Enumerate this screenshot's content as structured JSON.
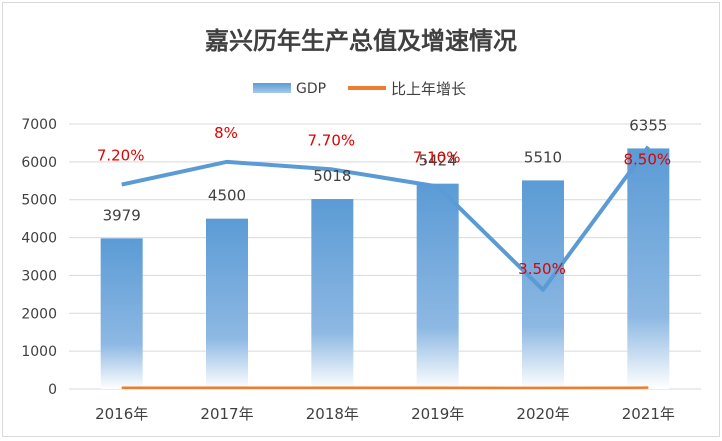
{
  "chart_data": {
    "type": "bar",
    "title": "嘉兴历年生产总值及增速情况",
    "categories": [
      "2016年",
      "2017年",
      "2018年",
      "2019年",
      "2020年",
      "2021年"
    ],
    "series": [
      {
        "name": "GDP",
        "type": "bar",
        "values": [
          3979,
          4500,
          5018,
          5424,
          5510,
          6355
        ],
        "value_labels": [
          "3979",
          "4500",
          "5018",
          "5424",
          "5510",
          "6355"
        ]
      },
      {
        "name": "比上年增长",
        "type": "line",
        "values": [
          7.2,
          8.0,
          7.7,
          7.1,
          3.5,
          8.5
        ],
        "value_labels": [
          "7.20%",
          "8%",
          "7.70%",
          "7.10%",
          "3.50%",
          "8.50%"
        ]
      }
    ],
    "unlabeled_line": {
      "values": [
        5400,
        6000,
        5800,
        5350,
        2620,
        6400
      ]
    },
    "ylim": [
      0,
      7000
    ],
    "yticks": [
      "0",
      "1000",
      "2000",
      "3000",
      "4000",
      "5000",
      "6000",
      "7000"
    ],
    "grid": true,
    "legend_position": "top-center",
    "colors": {
      "bar_top": "#5b9bd5",
      "bar_bottom": "#ffffff",
      "gdp_line": "#5b9bd5",
      "growth_line": "#ed7d31",
      "growth_label": "#e00000",
      "title": "#404040",
      "text": "#404040",
      "grid": "#d9d9d9"
    }
  }
}
